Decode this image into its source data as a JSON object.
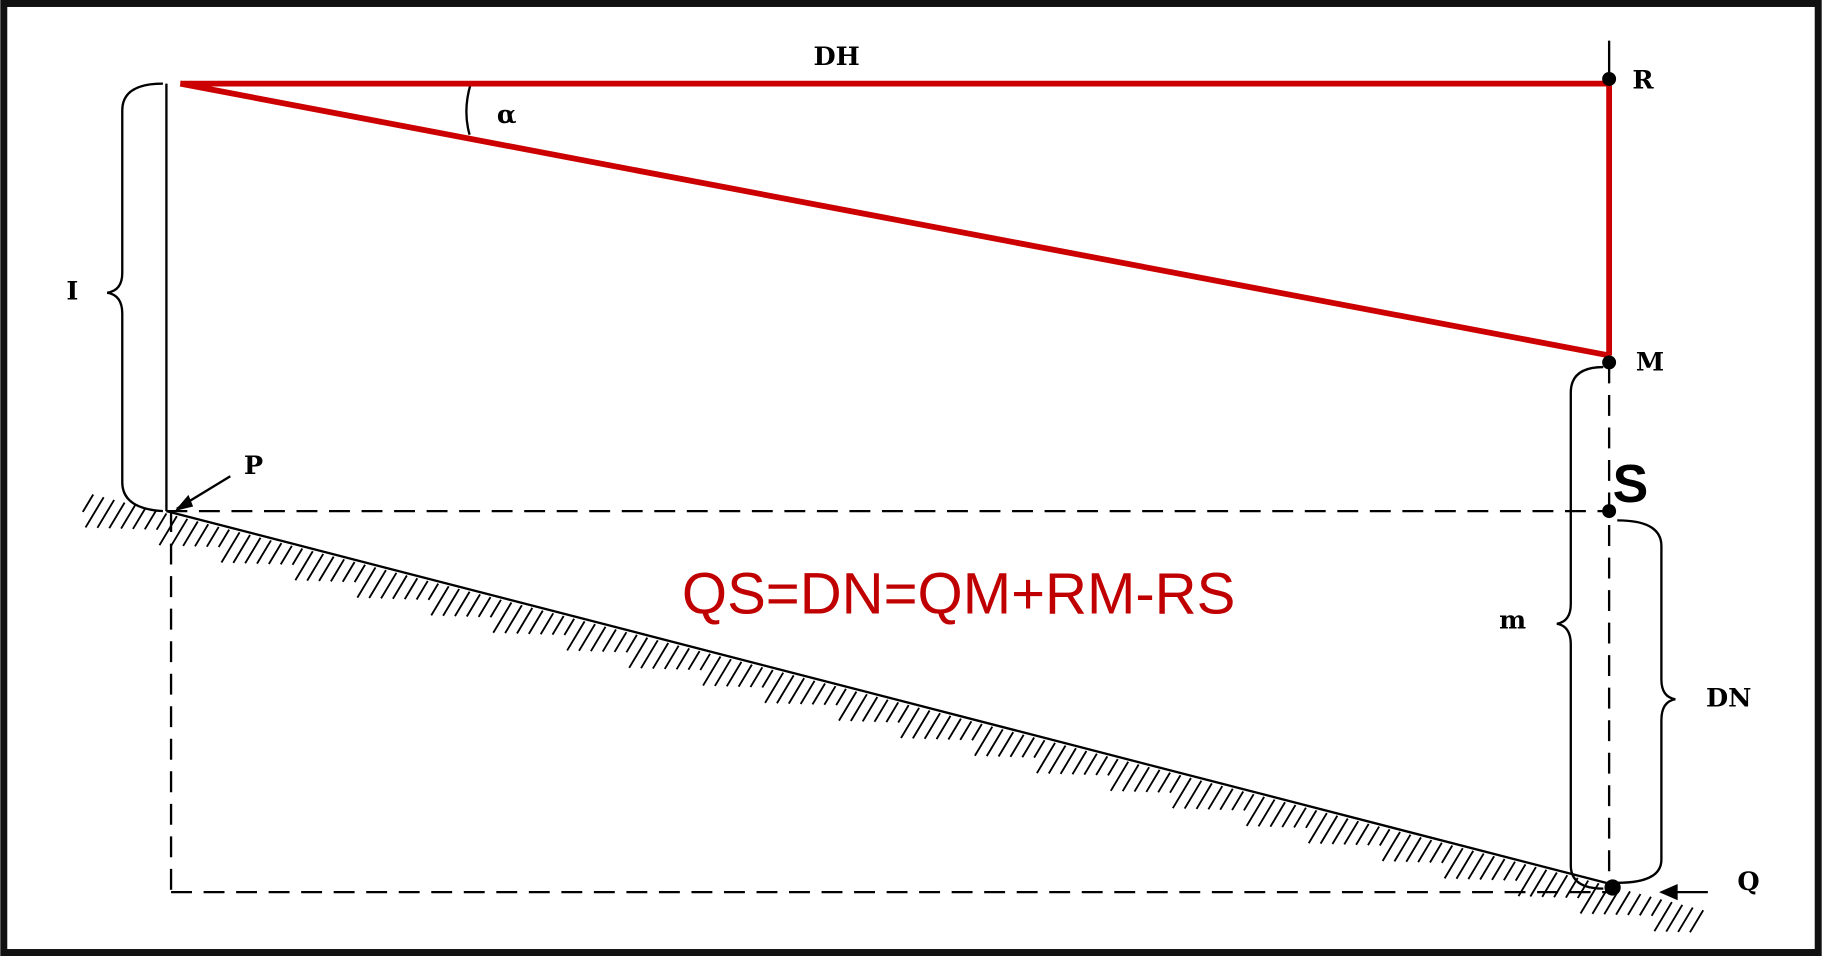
{
  "labels": {
    "dh": "DH",
    "alpha": "α",
    "r": "R",
    "i": "I",
    "m_point": "M",
    "p": "P",
    "s": "S",
    "m": "m",
    "dn": "DN",
    "q": "Q"
  },
  "formula": "QS=DN=QM+RM-RS"
}
